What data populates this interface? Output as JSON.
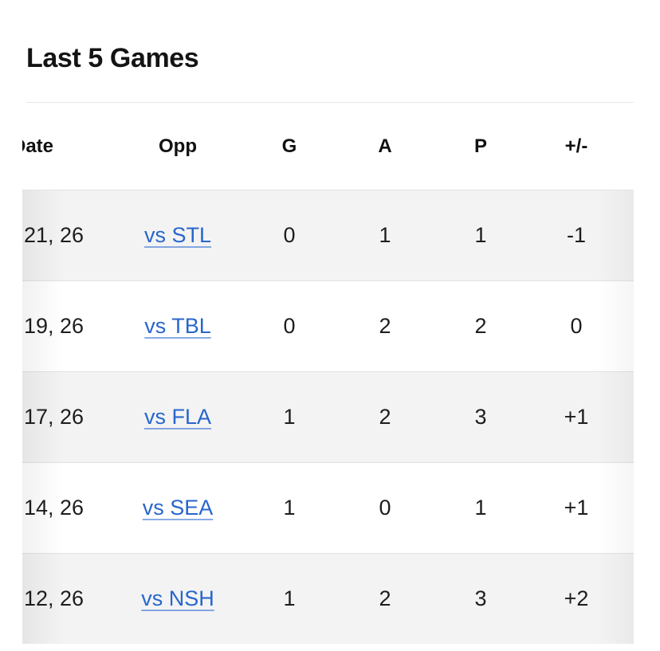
{
  "section": {
    "title": "Last 5 Games"
  },
  "table": {
    "columns": [
      {
        "key": "date",
        "label": "Date"
      },
      {
        "key": "opp",
        "label": "Opp"
      },
      {
        "key": "g",
        "label": "G"
      },
      {
        "key": "a",
        "label": "A"
      },
      {
        "key": "p",
        "label": "P"
      },
      {
        "key": "plus_minus",
        "label": "+/-"
      }
    ],
    "rows": [
      {
        "date": "21, 26",
        "opp": "vs STL",
        "g": "0",
        "a": "1",
        "p": "1",
        "plus_minus": "-1"
      },
      {
        "date": "19, 26",
        "opp": "vs TBL",
        "g": "0",
        "a": "2",
        "p": "2",
        "plus_minus": "0"
      },
      {
        "date": "17, 26",
        "opp": "vs FLA",
        "g": "1",
        "a": "2",
        "p": "3",
        "plus_minus": "+1"
      },
      {
        "date": "14, 26",
        "opp": "vs SEA",
        "g": "1",
        "a": "0",
        "p": "1",
        "plus_minus": "+1"
      },
      {
        "date": "12, 26",
        "opp": "vs NSH",
        "g": "1",
        "a": "2",
        "p": "3",
        "plus_minus": "+2"
      }
    ]
  },
  "colors": {
    "link": "#2866cd",
    "row_stripe": "#f3f3f3",
    "separator": "#e2e2e2",
    "divider": "#e8e8e8",
    "text": "#1d1d1f",
    "heading": "#141414"
  }
}
